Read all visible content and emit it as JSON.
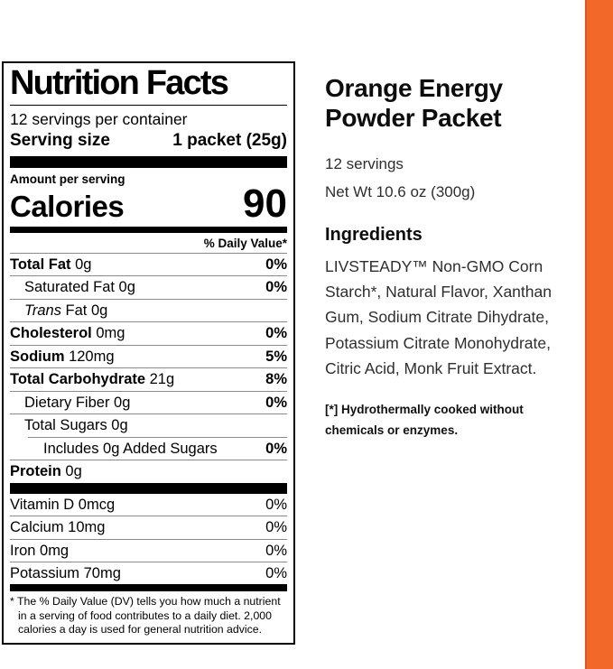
{
  "colors": {
    "accent_orange": "#F26829",
    "accent_orange_edge": "#E2571D"
  },
  "product": {
    "title": "Orange Energy Powder Packet",
    "servings": "12 servings",
    "net_weight": "Net Wt 10.6 oz (300g)",
    "ingredients_heading": "Ingredients",
    "ingredients": "LIVSTEADY™ Non-GMO Corn Starch*, Natural Flavor, Xanthan Gum, Sodium Citrate Dihydrate, Potassium Citrate Monohydrate, Citric Acid, Monk Fruit Extract.",
    "ingredients_note": "[*] Hydrothermally cooked without chemicals or enzymes."
  },
  "nutrition_label": {
    "title": "Nutrition Facts",
    "servings_per_container": "12 servings per container",
    "serving_size_label": "Serving size",
    "serving_size_value": "1 packet (25g)",
    "amount_per_serving": "Amount per serving",
    "calories_label": "Calories",
    "calories_value": "90",
    "daily_value_header": "% Daily Value*",
    "rows": [
      {
        "b": "Total Fat",
        "r": " 0g",
        "dv": "0%"
      },
      {
        "r": "Saturated Fat 0g",
        "dv": "0%"
      },
      {
        "i": "Trans",
        "r": " Fat 0g",
        "dv": ""
      },
      {
        "b": "Cholesterol",
        "r": " 0mg",
        "dv": "0%"
      },
      {
        "b": "Sodium",
        "r": " 120mg",
        "dv": "5%"
      },
      {
        "b": "Total Carbohydrate",
        "r": " 21g",
        "dv": "8%"
      },
      {
        "r": "Dietary Fiber 0g",
        "dv": "0%"
      },
      {
        "r": "Total Sugars 0g",
        "dv": ""
      },
      {
        "r": "Includes 0g Added Sugars",
        "dv": "0%"
      },
      {
        "b": "Protein",
        "r": " 0g",
        "dv": ""
      }
    ],
    "vitamins": [
      {
        "r": "Vitamin D 0mcg",
        "dv": "0%"
      },
      {
        "r": "Calcium 10mg",
        "dv": "0%"
      },
      {
        "r": "Iron 0mg",
        "dv": "0%"
      },
      {
        "r": "Potassium 70mg",
        "dv": "0%"
      }
    ],
    "footnote_marker": "*",
    "footnote": "The % Daily Value (DV) tells you how much a nutrient in a serving of food contributes to a daily diet. 2,000 calories a day is used for general nutrition advice."
  }
}
